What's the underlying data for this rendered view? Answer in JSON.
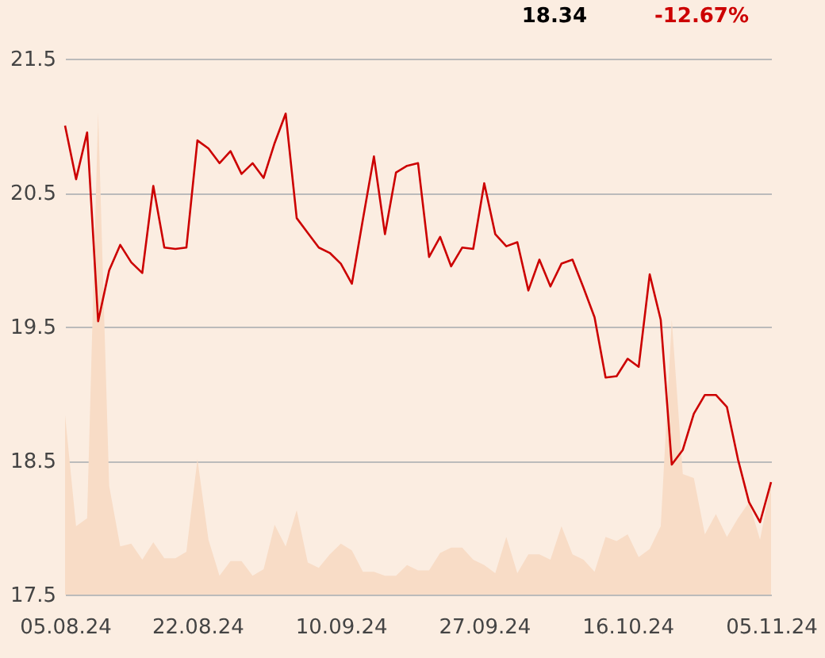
{
  "chart_data": {
    "type": "line",
    "annotations": [
      "18.34",
      "-12.67%"
    ],
    "categories": [
      "05.08.24",
      null,
      null,
      null,
      null,
      null,
      null,
      null,
      null,
      null,
      null,
      null,
      "22.08.24",
      null,
      null,
      null,
      null,
      null,
      null,
      null,
      null,
      null,
      null,
      null,
      null,
      "10.09.24",
      null,
      null,
      null,
      null,
      null,
      null,
      null,
      null,
      null,
      null,
      null,
      null,
      "27.09.24",
      null,
      null,
      null,
      null,
      null,
      null,
      null,
      null,
      null,
      null,
      null,
      null,
      "16.10.24",
      null,
      null,
      null,
      null,
      null,
      null,
      null,
      null,
      null,
      null,
      null,
      null,
      "05.11.24"
    ],
    "series": [
      {
        "type": "area",
        "color": "#f8dcc6",
        "values": [
          18.84,
          18.01,
          18.07,
          21.1,
          18.31,
          17.86,
          17.88,
          17.76,
          17.89,
          17.77,
          17.77,
          17.82,
          18.51,
          17.91,
          17.64,
          17.75,
          17.75,
          17.64,
          17.69,
          18.02,
          17.86,
          18.13,
          17.74,
          17.7,
          17.8,
          17.88,
          17.83,
          17.67,
          17.67,
          17.64,
          17.64,
          17.72,
          17.68,
          17.68,
          17.81,
          17.85,
          17.85,
          17.76,
          17.72,
          17.66,
          17.93,
          17.66,
          17.8,
          17.8,
          17.76,
          18.01,
          17.8,
          17.76,
          17.67,
          17.93,
          17.9,
          17.95,
          17.78,
          17.84,
          18.01,
          19.55,
          18.4,
          18.37,
          17.95,
          18.1,
          17.93,
          18.07,
          18.19,
          17.91,
          18.33
        ]
      },
      {
        "color": "#cc0000",
        "values": [
          21.0,
          20.6,
          20.95,
          19.54,
          19.92,
          20.11,
          19.98,
          19.9,
          20.55,
          20.09,
          20.08,
          20.09,
          20.89,
          20.83,
          20.72,
          20.81,
          20.64,
          20.72,
          20.61,
          20.87,
          21.09,
          20.31,
          20.2,
          20.09,
          20.05,
          19.97,
          19.82,
          20.3,
          20.77,
          20.19,
          20.65,
          20.7,
          20.72,
          20.02,
          20.17,
          19.95,
          20.09,
          20.08,
          20.57,
          20.19,
          20.1,
          20.13,
          19.77,
          20.0,
          19.8,
          19.97,
          20.0,
          19.79,
          19.57,
          19.12,
          19.13,
          19.26,
          19.2,
          19.89,
          19.55,
          18.47,
          18.58,
          18.85,
          18.99,
          18.99,
          18.9,
          18.51,
          18.19,
          18.04,
          18.34
        ]
      }
    ],
    "ylim": [
      17.5,
      21.5
    ],
    "yticks": [
      17.5,
      18.5,
      19.5,
      20.5,
      21.5
    ],
    "grid": "y",
    "marker": "none",
    "line_style": "solid"
  }
}
